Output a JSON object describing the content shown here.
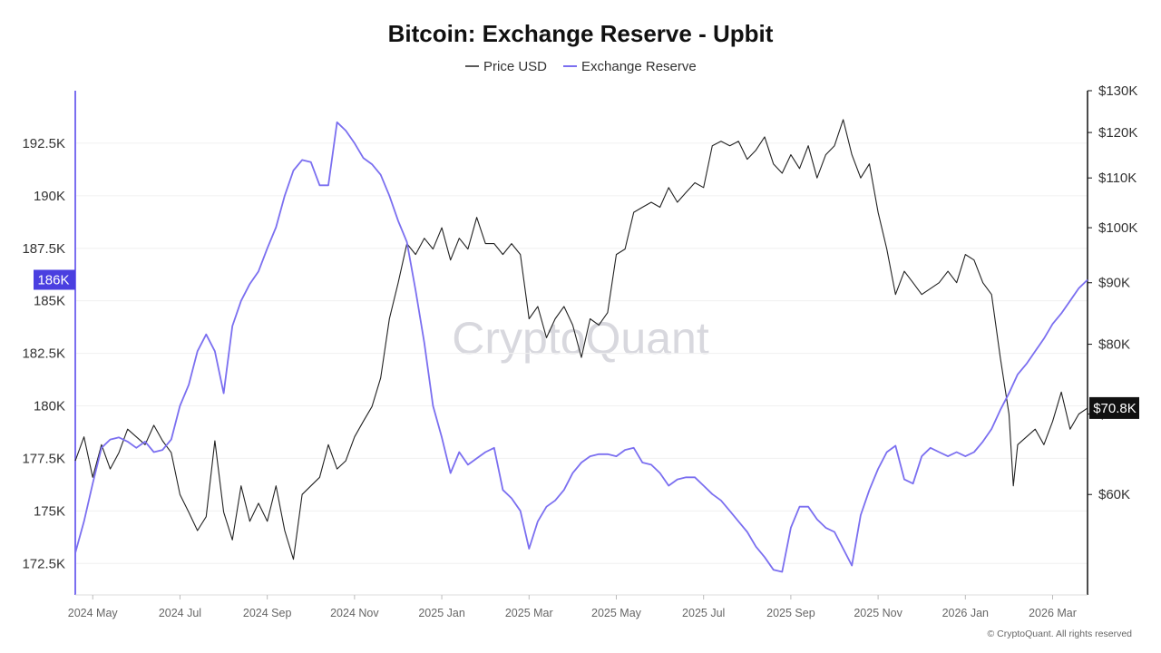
{
  "chart_data": {
    "type": "line",
    "title": "Bitcoin: Exchange Reserve - Upbit",
    "legend": [
      {
        "name": "Price USD",
        "color": "#222222"
      },
      {
        "name": "Exchange Reserve",
        "color": "#7b6ff0"
      }
    ],
    "left_axis": {
      "series": "Exchange Reserve",
      "ticks": [
        {
          "value": 172500,
          "label": "172.5K"
        },
        {
          "value": 175000,
          "label": "175K"
        },
        {
          "value": 177500,
          "label": "177.5K"
        },
        {
          "value": 180000,
          "label": "180K"
        },
        {
          "value": 182500,
          "label": "182.5K"
        },
        {
          "value": 185000,
          "label": "185K"
        },
        {
          "value": 187500,
          "label": "187.5K"
        },
        {
          "value": 190000,
          "label": "190K"
        },
        {
          "value": 192500,
          "label": "192.5K"
        }
      ],
      "ylim": [
        171000,
        195000
      ]
    },
    "right_axis": {
      "series": "Price USD",
      "scale": "log",
      "ticks": [
        {
          "value": 60000,
          "label": "$60K"
        },
        {
          "value": 70000,
          "label": "$70K"
        },
        {
          "value": 80000,
          "label": "$80K"
        },
        {
          "value": 90000,
          "label": "$90K"
        },
        {
          "value": 100000,
          "label": "$100K"
        },
        {
          "value": 110000,
          "label": "$110K"
        },
        {
          "value": 120000,
          "label": "$120K"
        },
        {
          "value": 130000,
          "label": "$130K"
        }
      ],
      "ylim": [
        49500,
        130000
      ]
    },
    "x_axis": {
      "t_range": [
        -0.4,
        22.8
      ],
      "ticks": [
        {
          "t": 0,
          "label": "2024 May"
        },
        {
          "t": 2,
          "label": "2024 Jul"
        },
        {
          "t": 4,
          "label": "2024 Sep"
        },
        {
          "t": 6,
          "label": "2024 Nov"
        },
        {
          "t": 8,
          "label": "2025 Jan"
        },
        {
          "t": 10,
          "label": "2025 Mar"
        },
        {
          "t": 12,
          "label": "2025 May"
        },
        {
          "t": 14,
          "label": "2025 Jul"
        },
        {
          "t": 16,
          "label": "2025 Sep"
        },
        {
          "t": 18,
          "label": "2025 Nov"
        },
        {
          "t": 20,
          "label": "2026 Jan"
        },
        {
          "t": 22,
          "label": "2026 Mar"
        }
      ]
    },
    "series": [
      {
        "name": "Exchange Reserve",
        "axis": "left",
        "points": [
          [
            -0.4,
            173
          ],
          [
            -0.2,
            174.5
          ],
          [
            0,
            176.3
          ],
          [
            0.2,
            178
          ],
          [
            0.4,
            178.4
          ],
          [
            0.6,
            178.5
          ],
          [
            0.8,
            178.3
          ],
          [
            1,
            178
          ],
          [
            1.2,
            178.3
          ],
          [
            1.4,
            177.8
          ],
          [
            1.6,
            177.9
          ],
          [
            1.8,
            178.4
          ],
          [
            2,
            180
          ],
          [
            2.2,
            181
          ],
          [
            2.4,
            182.6
          ],
          [
            2.6,
            183.4
          ],
          [
            2.8,
            182.6
          ],
          [
            3.0,
            180.6
          ],
          [
            3.2,
            183.8
          ],
          [
            3.4,
            185
          ],
          [
            3.6,
            185.8
          ],
          [
            3.8,
            186.4
          ],
          [
            4,
            187.5
          ],
          [
            4.2,
            188.5
          ],
          [
            4.4,
            190
          ],
          [
            4.6,
            191.2
          ],
          [
            4.8,
            191.7
          ],
          [
            5.0,
            191.6
          ],
          [
            5.2,
            190.5
          ],
          [
            5.4,
            190.5
          ],
          [
            5.6,
            193.5
          ],
          [
            5.8,
            193.1
          ],
          [
            6.0,
            192.5
          ],
          [
            6.2,
            191.8
          ],
          [
            6.4,
            191.5
          ],
          [
            6.6,
            191
          ],
          [
            6.8,
            190
          ],
          [
            7.0,
            188.8
          ],
          [
            7.2,
            187.8
          ],
          [
            7.4,
            185.5
          ],
          [
            7.6,
            183
          ],
          [
            7.8,
            180
          ],
          [
            8.0,
            178.5
          ],
          [
            8.2,
            176.8
          ],
          [
            8.4,
            177.8
          ],
          [
            8.6,
            177.2
          ],
          [
            8.8,
            177.5
          ],
          [
            9.0,
            177.8
          ],
          [
            9.2,
            178
          ],
          [
            9.4,
            176
          ],
          [
            9.6,
            175.6
          ],
          [
            9.8,
            175.0
          ],
          [
            10.0,
            173.2
          ],
          [
            10.2,
            174.5
          ],
          [
            10.4,
            175.2
          ],
          [
            10.6,
            175.5
          ],
          [
            10.8,
            176.0
          ],
          [
            11.0,
            176.8
          ],
          [
            11.2,
            177.3
          ],
          [
            11.4,
            177.6
          ],
          [
            11.6,
            177.7
          ],
          [
            11.8,
            177.7
          ],
          [
            12.0,
            177.6
          ],
          [
            12.2,
            177.9
          ],
          [
            12.4,
            178.0
          ],
          [
            12.6,
            177.3
          ],
          [
            12.8,
            177.2
          ],
          [
            13.0,
            176.8
          ],
          [
            13.2,
            176.2
          ],
          [
            13.4,
            176.5
          ],
          [
            13.6,
            176.6
          ],
          [
            13.8,
            176.6
          ],
          [
            14.0,
            176.2
          ],
          [
            14.2,
            175.8
          ],
          [
            14.4,
            175.5
          ],
          [
            14.6,
            175.0
          ],
          [
            14.8,
            174.5
          ],
          [
            15.0,
            174.0
          ],
          [
            15.2,
            173.3
          ],
          [
            15.4,
            172.8
          ],
          [
            15.6,
            172.2
          ],
          [
            15.8,
            172.1
          ],
          [
            16.0,
            174.2
          ],
          [
            16.2,
            175.2
          ],
          [
            16.4,
            175.2
          ],
          [
            16.6,
            174.6
          ],
          [
            16.8,
            174.2
          ],
          [
            17.0,
            174.0
          ],
          [
            17.2,
            173.2
          ],
          [
            17.4,
            172.4
          ],
          [
            17.6,
            174.8
          ],
          [
            17.8,
            176.0
          ],
          [
            18.0,
            177.0
          ],
          [
            18.2,
            177.8
          ],
          [
            18.4,
            178.1
          ],
          [
            18.6,
            176.5
          ],
          [
            18.8,
            176.3
          ],
          [
            19.0,
            177.6
          ],
          [
            19.2,
            178.0
          ],
          [
            19.4,
            177.8
          ],
          [
            19.6,
            177.6
          ],
          [
            19.8,
            177.8
          ],
          [
            20.0,
            177.6
          ],
          [
            20.2,
            177.8
          ],
          [
            20.4,
            178.3
          ],
          [
            20.6,
            178.9
          ],
          [
            20.8,
            179.8
          ],
          [
            21.0,
            180.6
          ],
          [
            21.2,
            181.5
          ],
          [
            21.4,
            182.0
          ],
          [
            21.6,
            182.6
          ],
          [
            21.8,
            183.2
          ],
          [
            22.0,
            183.9
          ],
          [
            22.2,
            184.4
          ],
          [
            22.4,
            185.0
          ],
          [
            22.6,
            185.6
          ],
          [
            22.8,
            186.0
          ]
        ]
      },
      {
        "name": "Price USD",
        "axis": "right",
        "points": [
          [
            -0.4,
            64
          ],
          [
            -0.2,
            67
          ],
          [
            0,
            62
          ],
          [
            0.2,
            66
          ],
          [
            0.4,
            63
          ],
          [
            0.6,
            65
          ],
          [
            0.8,
            68
          ],
          [
            1,
            67
          ],
          [
            1.2,
            66
          ],
          [
            1.4,
            68.5
          ],
          [
            1.6,
            66.5
          ],
          [
            1.8,
            65
          ],
          [
            2.0,
            60
          ],
          [
            2.2,
            58
          ],
          [
            2.4,
            56
          ],
          [
            2.6,
            57.5
          ],
          [
            2.8,
            66.5
          ],
          [
            3.0,
            58
          ],
          [
            3.2,
            55
          ],
          [
            3.4,
            61
          ],
          [
            3.6,
            57
          ],
          [
            3.8,
            59
          ],
          [
            4.0,
            57
          ],
          [
            4.2,
            61
          ],
          [
            4.4,
            56
          ],
          [
            4.6,
            53
          ],
          [
            4.8,
            60
          ],
          [
            5.0,
            61
          ],
          [
            5.2,
            62
          ],
          [
            5.4,
            66
          ],
          [
            5.6,
            63
          ],
          [
            5.8,
            64
          ],
          [
            6.0,
            67
          ],
          [
            6.2,
            69
          ],
          [
            6.4,
            71
          ],
          [
            6.6,
            75
          ],
          [
            6.8,
            84
          ],
          [
            7.0,
            90
          ],
          [
            7.2,
            97
          ],
          [
            7.4,
            95
          ],
          [
            7.6,
            98
          ],
          [
            7.8,
            96
          ],
          [
            8.0,
            100
          ],
          [
            8.2,
            94
          ],
          [
            8.4,
            98
          ],
          [
            8.6,
            96
          ],
          [
            8.8,
            102
          ],
          [
            9.0,
            97
          ],
          [
            9.2,
            97
          ],
          [
            9.4,
            95
          ],
          [
            9.6,
            97
          ],
          [
            9.8,
            95
          ],
          [
            10.0,
            84
          ],
          [
            10.2,
            86
          ],
          [
            10.4,
            81
          ],
          [
            10.6,
            84
          ],
          [
            10.8,
            86
          ],
          [
            11.0,
            83
          ],
          [
            11.2,
            78
          ],
          [
            11.4,
            84
          ],
          [
            11.6,
            83
          ],
          [
            11.8,
            85
          ],
          [
            12.0,
            95
          ],
          [
            12.2,
            96
          ],
          [
            12.4,
            103
          ],
          [
            12.6,
            104
          ],
          [
            12.8,
            105
          ],
          [
            13.0,
            104
          ],
          [
            13.2,
            108
          ],
          [
            13.4,
            105
          ],
          [
            13.6,
            107
          ],
          [
            13.8,
            109
          ],
          [
            14.0,
            108
          ],
          [
            14.2,
            117
          ],
          [
            14.4,
            118
          ],
          [
            14.6,
            117
          ],
          [
            14.8,
            118
          ],
          [
            15.0,
            114
          ],
          [
            15.2,
            116
          ],
          [
            15.4,
            119
          ],
          [
            15.6,
            113
          ],
          [
            15.8,
            111
          ],
          [
            16.0,
            115
          ],
          [
            16.2,
            112
          ],
          [
            16.4,
            117
          ],
          [
            16.6,
            110
          ],
          [
            16.8,
            115
          ],
          [
            17.0,
            117
          ],
          [
            17.2,
            123
          ],
          [
            17.4,
            115
          ],
          [
            17.6,
            110
          ],
          [
            17.8,
            113
          ],
          [
            18.0,
            103
          ],
          [
            18.2,
            96
          ],
          [
            18.4,
            88
          ],
          [
            18.6,
            92
          ],
          [
            18.8,
            90
          ],
          [
            19.0,
            88
          ],
          [
            19.2,
            89
          ],
          [
            19.4,
            90
          ],
          [
            19.6,
            92
          ],
          [
            19.8,
            90
          ],
          [
            20.0,
            95
          ],
          [
            20.2,
            94
          ],
          [
            20.4,
            90
          ],
          [
            20.6,
            88
          ],
          [
            20.8,
            78
          ],
          [
            21.0,
            70
          ],
          [
            21.1,
            61
          ],
          [
            21.2,
            66
          ],
          [
            21.4,
            67
          ],
          [
            21.6,
            68
          ],
          [
            21.8,
            66
          ],
          [
            22.0,
            69
          ],
          [
            22.2,
            73
          ],
          [
            22.4,
            68
          ],
          [
            22.6,
            70
          ],
          [
            22.8,
            70.8
          ]
        ]
      }
    ],
    "annotations": [
      {
        "text": "186K",
        "axis": "left",
        "value": 186000
      },
      {
        "text": "$70.8K",
        "axis": "right",
        "value": 70800
      }
    ],
    "watermark": "CryptoQuant",
    "footer": "© CryptoQuant. All rights reserved"
  }
}
